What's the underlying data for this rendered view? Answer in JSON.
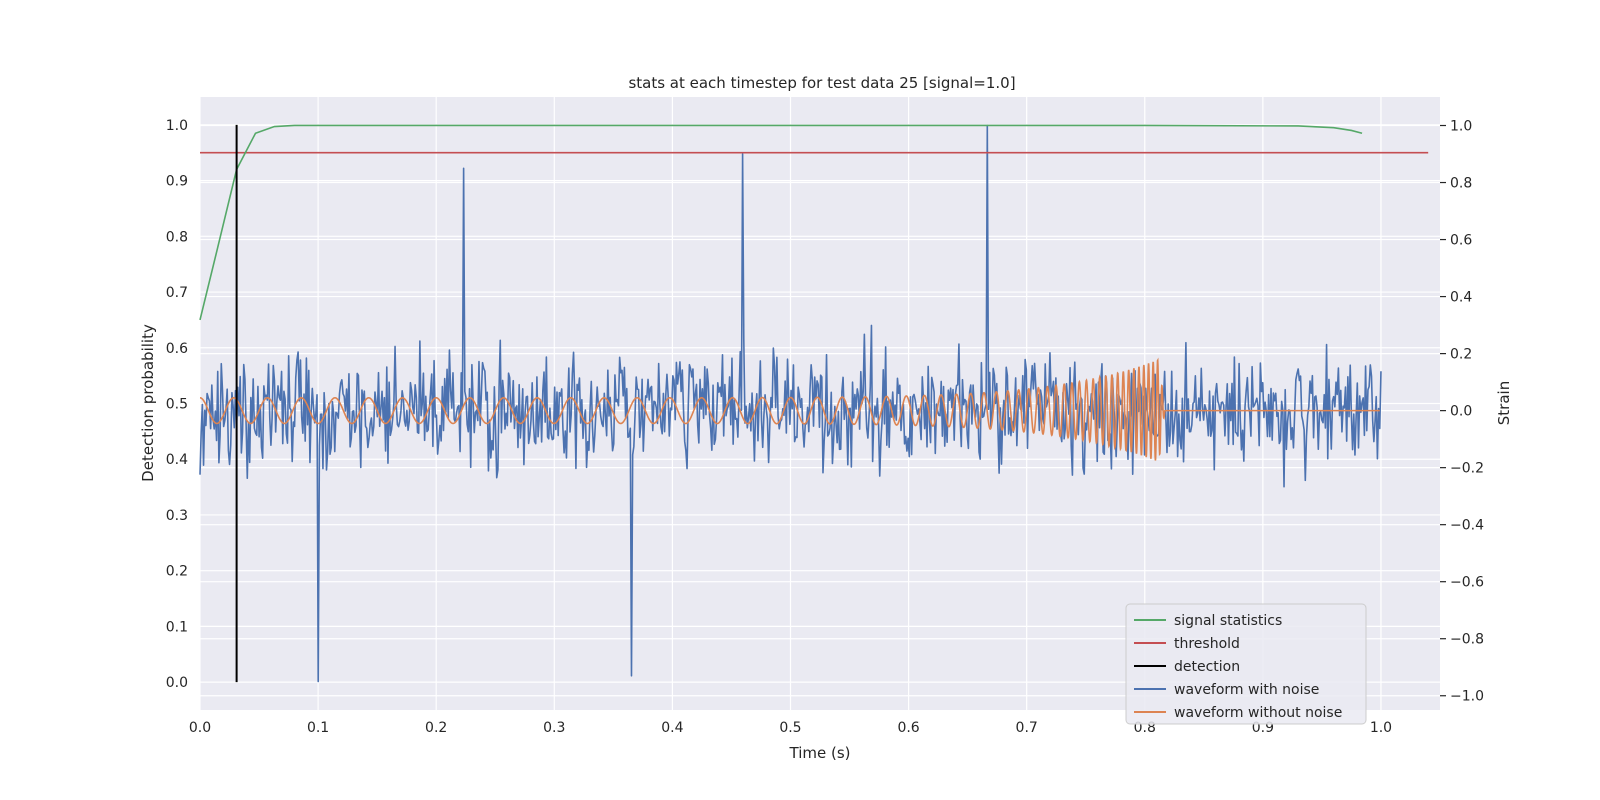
{
  "chart_data": {
    "type": "line",
    "title": "stats at each timestep for test data 25 [signal=1.0]",
    "xlabel": "Time (s)",
    "ylabel_left": "Detection probability",
    "ylabel_right": "Strain",
    "xlim": [
      0.0,
      1.05
    ],
    "ylim_left": [
      -0.05,
      1.05
    ],
    "ylim_right": [
      -1.05,
      1.1
    ],
    "x_ticks": [
      "0.0",
      "0.1",
      "0.2",
      "0.3",
      "0.4",
      "0.5",
      "0.6",
      "0.7",
      "0.8",
      "0.9",
      "1.0"
    ],
    "y_ticks_left": [
      "0.0",
      "0.1",
      "0.2",
      "0.3",
      "0.4",
      "0.5",
      "0.6",
      "0.7",
      "0.8",
      "0.9",
      "1.0"
    ],
    "y_ticks_right": [
      "−1.0",
      "−0.8",
      "−0.6",
      "−0.4",
      "−0.2",
      "0.0",
      "0.2",
      "0.4",
      "0.6",
      "0.8",
      "1.0"
    ],
    "grid": true,
    "legend_position": "lower-right",
    "background": "#eaeaf2",
    "series": [
      {
        "name": "signal statistics",
        "axis": "left",
        "color": "#55a868",
        "x": [
          0.0,
          0.015,
          0.031,
          0.047,
          0.063,
          0.08,
          0.2,
          0.4,
          0.6,
          0.8,
          0.93,
          0.96,
          0.975,
          0.984
        ],
        "y": [
          0.65,
          0.78,
          0.92,
          0.985,
          0.997,
          0.999,
          0.999,
          0.999,
          0.999,
          0.999,
          0.998,
          0.995,
          0.99,
          0.985
        ]
      },
      {
        "name": "threshold",
        "axis": "left",
        "color": "#c44e52",
        "x": [
          0.0,
          1.04
        ],
        "y": [
          0.95,
          0.95
        ]
      },
      {
        "name": "detection",
        "axis": "left",
        "color": "#000000",
        "x": [
          0.031,
          0.031
        ],
        "y": [
          0.0,
          1.0
        ]
      },
      {
        "name": "waveform with noise",
        "axis": "right",
        "color": "#4c72b0",
        "x_range": [
          0.0,
          1.0
        ],
        "n_points": 1000,
        "y_extent": [
          -0.95,
          1.0
        ],
        "marked_points": [
          {
            "x": 0.1,
            "y": -0.95
          },
          {
            "x": 0.223,
            "y": 0.85
          },
          {
            "x": 0.365,
            "y": -0.93
          },
          {
            "x": 0.459,
            "y": 0.9
          },
          {
            "x": 0.667,
            "y": 1.0
          }
        ]
      },
      {
        "name": "waveform without noise",
        "axis": "right",
        "color": "#dd8452",
        "x_range": [
          0.0,
          0.999
        ],
        "f_start_hz": 35,
        "f_end_hz": 270,
        "amplitude_start": 0.045,
        "amplitude_peak": 0.18,
        "merger_time": 0.812
      }
    ]
  }
}
